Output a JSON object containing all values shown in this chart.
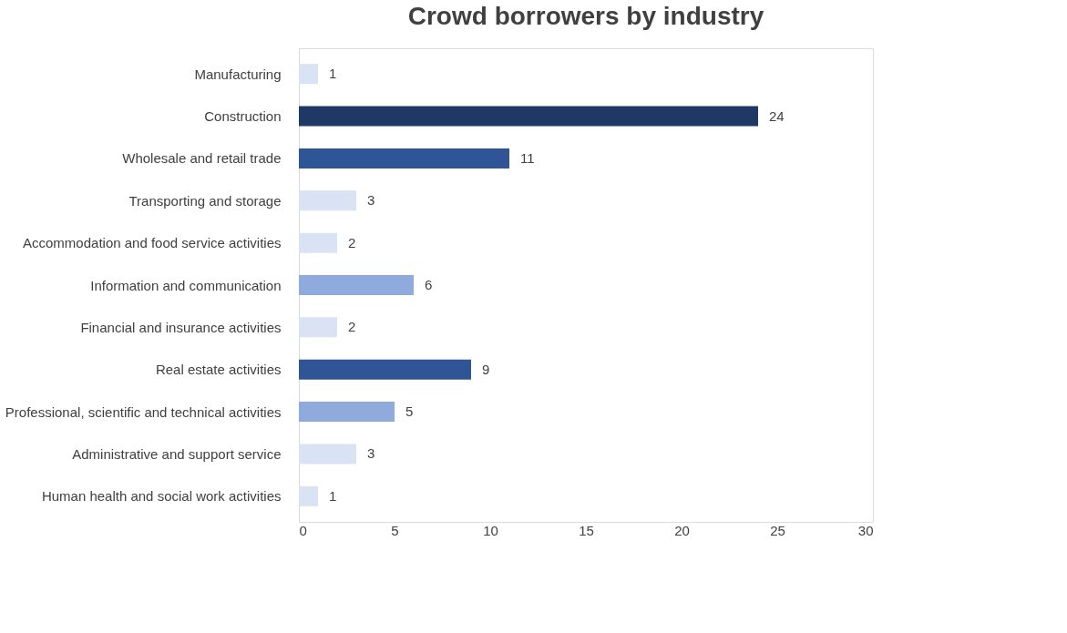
{
  "chart_data": {
    "type": "bar",
    "orientation": "horizontal",
    "title": "Crowd borrowers by industry",
    "categories": [
      "Manufacturing",
      "Construction",
      "Wholesale and retail trade",
      "Transporting and storage",
      "Accommodation and food service activities",
      "Information and communication",
      "Financial and insurance activities",
      "Real estate activities",
      "Professional, scientific and technical activities",
      "Administrative and support service",
      "Human health and social work activities"
    ],
    "values": [
      1,
      24,
      11,
      3,
      2,
      6,
      2,
      9,
      5,
      3,
      1
    ],
    "colors": [
      "#dae3f3",
      "#203864",
      "#2f5597",
      "#dae3f3",
      "#dae3f3",
      "#8faadc",
      "#dae3f3",
      "#2f5597",
      "#8faadc",
      "#dae3f3",
      "#dae3f3"
    ],
    "xlim": [
      0,
      30
    ],
    "xticks": [
      0,
      5,
      10,
      15,
      20,
      25,
      30
    ],
    "grid": false,
    "data_labels": true
  }
}
